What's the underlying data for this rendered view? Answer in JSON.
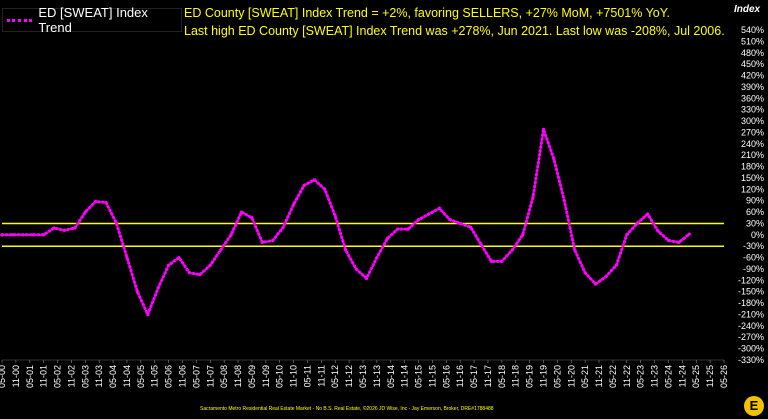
{
  "legend": {
    "label": "ED [SWEAT] Index Trend",
    "color": "#ff00ff"
  },
  "headline": {
    "line1": "ED County [SWEAT] Index Trend = +2%, favoring SELLERS, +27% MoM, +7501% YoY.",
    "line2": "Last high ED County [SWEAT] Index Trend was +278%, Jun 2021. Last low was -208%, Jul 2006."
  },
  "yaxis_title": "Index",
  "footer": "Sacramento Metro Residential Real Estate Market - No B.S. Real Estate, ©2026 JD Wise, Inc - Jay Emerson, Broker, DRE#1788488",
  "logo_text": "E",
  "chart_data": {
    "type": "line",
    "grid": false,
    "ylim": [
      -330,
      540
    ],
    "ytick_step": 30,
    "threshold_lines": [
      30,
      -30
    ],
    "threshold_color": "#ffff00",
    "x_ticks": [
      "05-00",
      "11-00",
      "05-01",
      "11-01",
      "05-02",
      "11-02",
      "05-03",
      "11-03",
      "05-04",
      "11-04",
      "05-05",
      "11-05",
      "05-06",
      "11-06",
      "05-07",
      "11-07",
      "05-08",
      "11-08",
      "05-09",
      "11-09",
      "05-10",
      "11-10",
      "05-11",
      "11-11",
      "05-12",
      "11-12",
      "05-13",
      "11-13",
      "05-14",
      "11-14",
      "05-15",
      "11-15",
      "05-16",
      "11-16",
      "05-17",
      "11-17",
      "05-18",
      "11-18",
      "05-19",
      "11-19",
      "05-20",
      "11-20",
      "05-21",
      "11-21",
      "05-22",
      "11-22",
      "05-23",
      "11-23",
      "05-24",
      "11-24",
      "05-25",
      "11-25",
      "05-26"
    ],
    "series": [
      {
        "color": "#ff00ff",
        "points": [
          [
            0,
            0
          ],
          [
            1,
            0
          ],
          [
            2,
            0
          ],
          [
            3,
            0
          ],
          [
            4,
            0
          ],
          [
            5,
            18
          ],
          [
            6,
            12
          ],
          [
            7,
            18
          ],
          [
            8,
            60
          ],
          [
            9,
            88
          ],
          [
            10,
            85
          ],
          [
            11,
            30
          ],
          [
            12,
            -60
          ],
          [
            13,
            -150
          ],
          [
            14,
            -210
          ],
          [
            15,
            -140
          ],
          [
            16,
            -80
          ],
          [
            17,
            -60
          ],
          [
            18,
            -100
          ],
          [
            19,
            -105
          ],
          [
            20,
            -80
          ],
          [
            21,
            -40
          ],
          [
            22,
            0
          ],
          [
            23,
            60
          ],
          [
            24,
            45
          ],
          [
            25,
            -20
          ],
          [
            26,
            -15
          ],
          [
            27,
            20
          ],
          [
            28,
            80
          ],
          [
            29,
            130
          ],
          [
            30,
            145
          ],
          [
            31,
            120
          ],
          [
            32,
            50
          ],
          [
            33,
            -40
          ],
          [
            34,
            -90
          ],
          [
            35,
            -115
          ],
          [
            36,
            -60
          ],
          [
            37,
            -10
          ],
          [
            38,
            15
          ],
          [
            39,
            15
          ],
          [
            40,
            40
          ],
          [
            41,
            55
          ],
          [
            42,
            70
          ],
          [
            43,
            40
          ],
          [
            44,
            30
          ],
          [
            45,
            20
          ],
          [
            46,
            -25
          ],
          [
            47,
            -70
          ],
          [
            48,
            -70
          ],
          [
            49,
            -40
          ],
          [
            50,
            0
          ],
          [
            51,
            100
          ],
          [
            52,
            278
          ],
          [
            53,
            200
          ],
          [
            54,
            90
          ],
          [
            55,
            -40
          ],
          [
            56,
            -100
          ],
          [
            57,
            -130
          ],
          [
            58,
            -110
          ],
          [
            59,
            -80
          ],
          [
            60,
            0
          ],
          [
            61,
            30
          ],
          [
            62,
            55
          ],
          [
            63,
            10
          ],
          [
            64,
            -15
          ],
          [
            65,
            -20
          ],
          [
            66,
            2
          ]
        ]
      }
    ]
  }
}
